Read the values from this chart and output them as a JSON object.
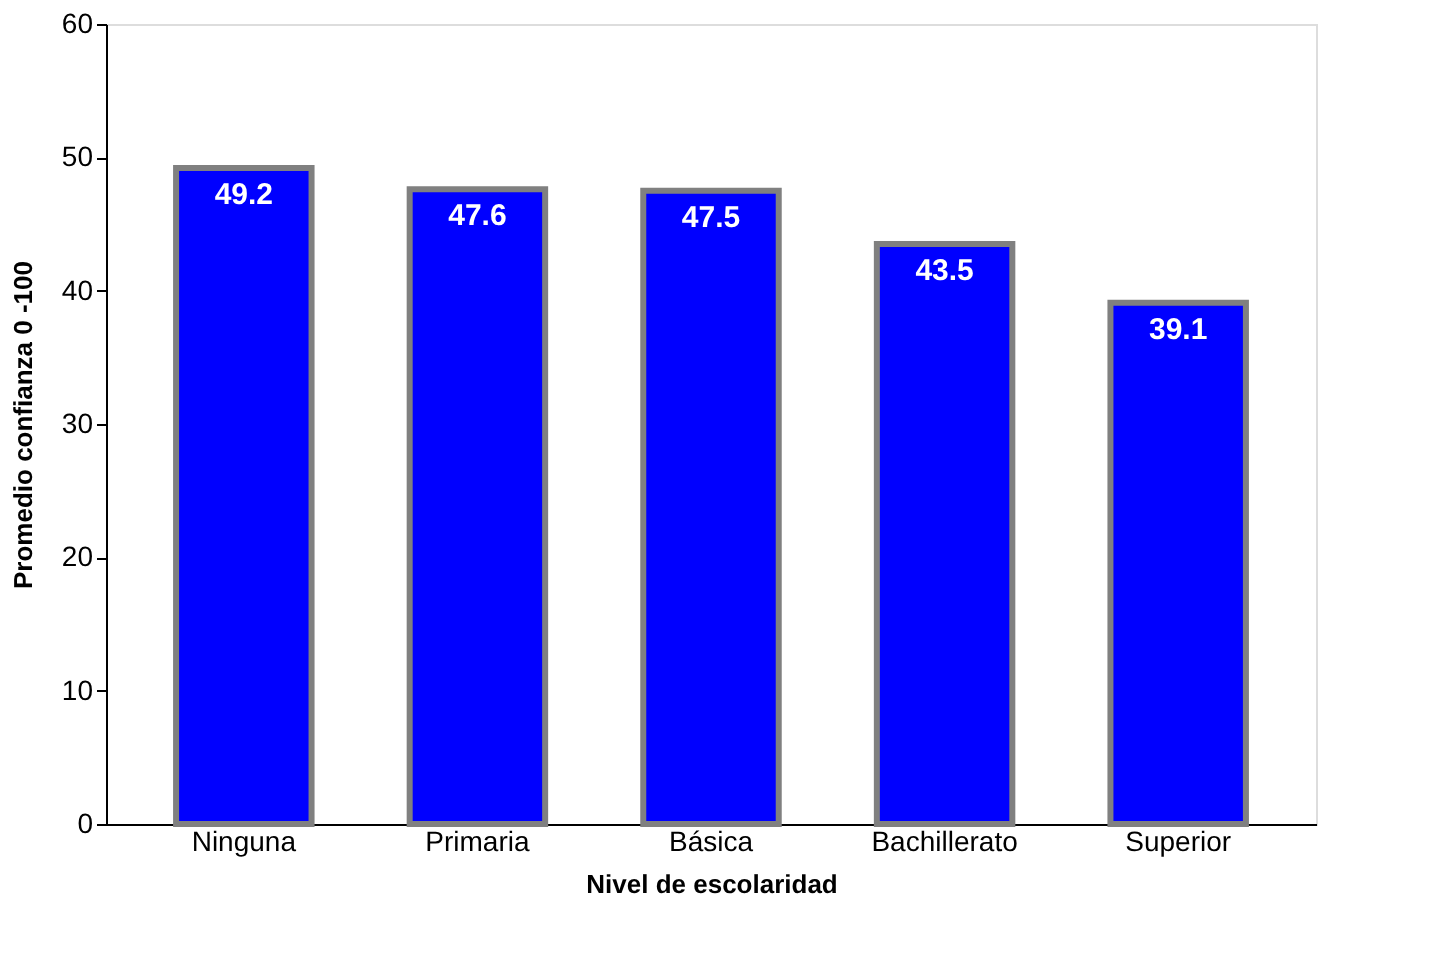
{
  "chart_data": {
    "type": "bar",
    "xlabel": "Nivel de escolaridad",
    "ylabel": "Promedio confianza 0 -100",
    "categories": [
      "Ninguna",
      "Primaria",
      "Básica",
      "Bachillerato",
      "Superior"
    ],
    "values": [
      49.2,
      47.6,
      47.5,
      43.5,
      39.1
    ],
    "color": "#0000ff",
    "ylim": [
      0,
      60
    ],
    "yticks": [
      0,
      10,
      20,
      30,
      40,
      50,
      60
    ],
    "grid": false,
    "data_labels": true
  }
}
